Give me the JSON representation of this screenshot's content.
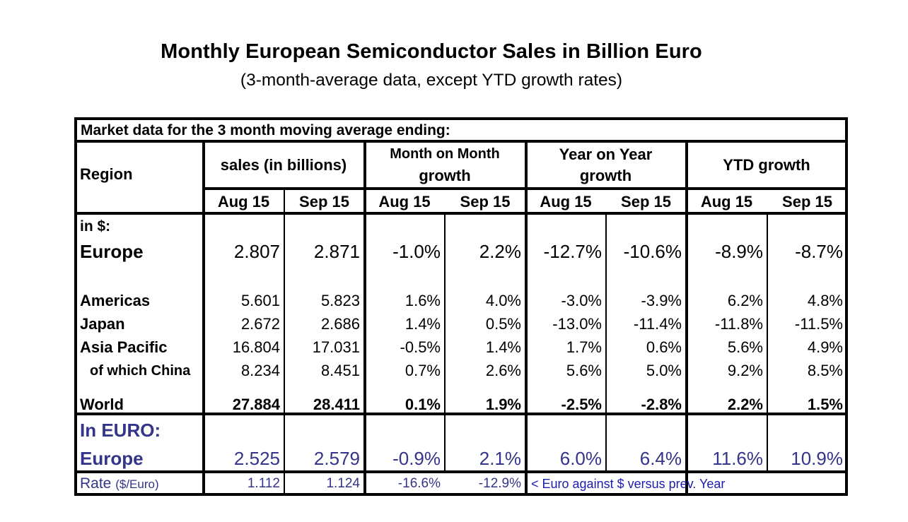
{
  "title": "Monthly European Semiconductor Sales in Billion Euro",
  "subtitle": "(3-month-average data, except YTD growth rates)",
  "colors": {
    "text": "#000000",
    "euro_section": "#34348a",
    "annotation": "#1c1cb0",
    "border": "#000000",
    "background": "#ffffff"
  },
  "table": {
    "caption": "Market data for the 3 month moving average ending:",
    "region_header": "Region",
    "groups": [
      {
        "label_line1": "sales (in billions)",
        "label_line2": ""
      },
      {
        "label_line1": "Month on Month",
        "label_line2": "growth"
      },
      {
        "label_line1": "Year on Year",
        "label_line2": "growth"
      },
      {
        "label_line1": "YTD growth",
        "label_line2": ""
      }
    ],
    "periods": [
      "Aug 15",
      "Sep 15",
      "Aug 15",
      "Sep 15",
      "Aug 15",
      "Sep 15",
      "Aug 15",
      "Sep 15"
    ],
    "usd_section_label": "in $:",
    "rows": [
      {
        "region": "Europe",
        "values": [
          "2.807",
          "2.871",
          "-1.0%",
          "2.2%",
          "-12.7%",
          "-10.6%",
          "-8.9%",
          "-8.7%"
        ]
      },
      {
        "region": "Americas",
        "values": [
          "5.601",
          "5.823",
          "1.6%",
          "4.0%",
          "-3.0%",
          "-3.9%",
          "6.2%",
          "4.8%"
        ]
      },
      {
        "region": "Japan",
        "values": [
          "2.672",
          "2.686",
          "1.4%",
          "0.5%",
          "-13.0%",
          "-11.4%",
          "-11.8%",
          "-11.5%"
        ]
      },
      {
        "region": "Asia Pacific",
        "values": [
          "16.804",
          "17.031",
          "-0.5%",
          "1.4%",
          "1.7%",
          "0.6%",
          "5.6%",
          "4.9%"
        ]
      },
      {
        "region": "of which China",
        "values": [
          "8.234",
          "8.451",
          "0.7%",
          "2.6%",
          "5.6%",
          "5.0%",
          "9.2%",
          "8.5%"
        ]
      },
      {
        "region": "World",
        "values": [
          "27.884",
          "28.411",
          "0.1%",
          "1.9%",
          "-2.5%",
          "-2.8%",
          "2.2%",
          "1.5%"
        ]
      }
    ],
    "euro_section_label": "In EURO:",
    "euro_row": {
      "region": "Europe",
      "values": [
        "2.525",
        "2.579",
        "-0.9%",
        "2.1%",
        "6.0%",
        "6.4%",
        "11.6%",
        "10.9%"
      ]
    },
    "rate_row": {
      "label": "Rate",
      "unit": "($/Euro)",
      "values": [
        "1.112",
        "1.124",
        "-16.6%",
        "-12.9%"
      ],
      "note": "< Euro against $ versus prev. Year"
    }
  }
}
